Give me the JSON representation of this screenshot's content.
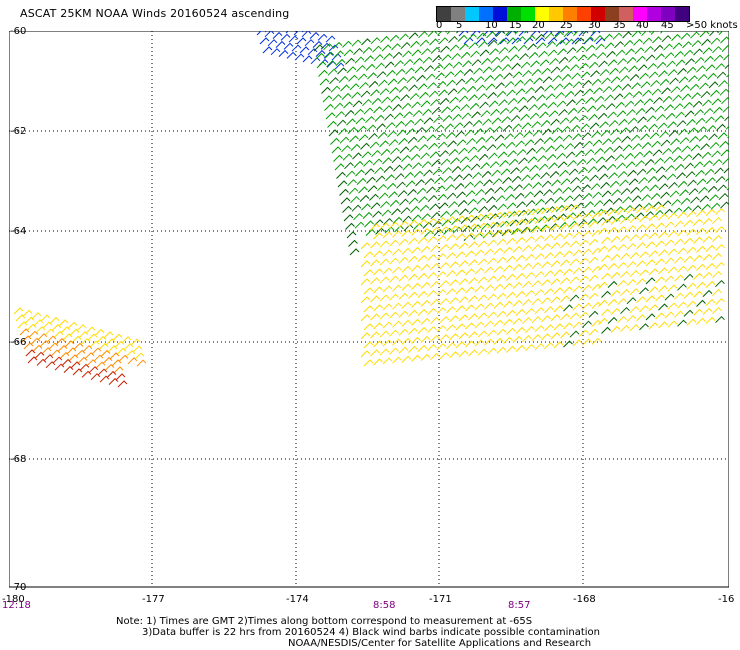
{
  "title": "ASCAT 25KM NOAA Winds 20160524 ascending",
  "colorbar": {
    "colors": [
      "#404040",
      "#808080",
      "#00c8ff",
      "#0070ff",
      "#0010d8",
      "#00b000",
      "#00e000",
      "#ffff00",
      "#ffc800",
      "#ff8000",
      "#ff4000",
      "#d00000",
      "#8b4020",
      "#d06060",
      "#ff00ff",
      "#b000e0",
      "#8000c0",
      "#400080"
    ],
    "labels": [
      "0",
      "5",
      "10",
      "15",
      "20",
      "25",
      "30",
      "35",
      "40",
      "45",
      ">50 knots"
    ]
  },
  "axes": {
    "y_ticks": [
      "-60",
      "-62",
      "-64",
      "-66",
      "-68",
      "-70"
    ],
    "x_ticks": [
      "-180",
      "-177",
      "-174",
      "-171",
      "-168",
      "-16"
    ]
  },
  "times": [
    "12:18",
    "8:58",
    "8:57"
  ],
  "notes": [
    "Note: 1) Times are GMT 2)Times along bottom correspond to measurement at -65S",
    "3)Data buffer is 22 hrs from 20160524 4) Black wind barbs indicate possible contamination",
    "NOAA/NESDIS/Center for Satellite Applications and Research"
  ],
  "wind_swaths": [
    {
      "name": "blue",
      "color": "#0030e0",
      "speed_knots": 15
    },
    {
      "name": "green",
      "color": "#00a000",
      "speed_knots": 20
    },
    {
      "name": "dark-green",
      "color": "#006000",
      "speed_knots": 20
    },
    {
      "name": "yellow",
      "color": "#ffdc00",
      "speed_knots": 25
    },
    {
      "name": "orange",
      "color": "#ff8c00",
      "speed_knots": 30
    },
    {
      "name": "red",
      "color": "#c82000",
      "speed_knots": 35
    }
  ]
}
